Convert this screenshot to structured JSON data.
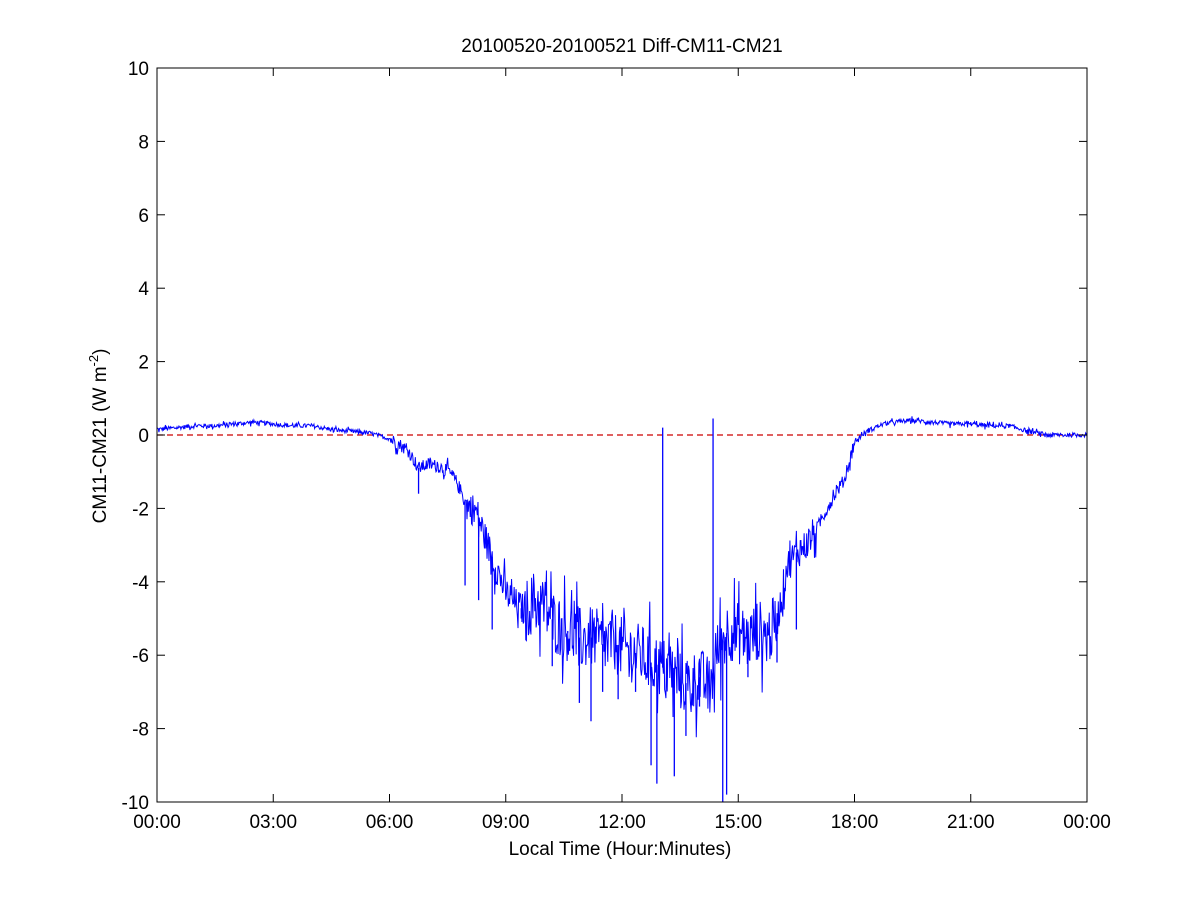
{
  "chart_data": {
    "type": "line",
    "title": "20100520-20100521 Diff-CM11-CM21",
    "xlabel": "Local Time (Hour:Minutes)",
    "ylabel": "CM11-CM21 (W m",
    "ylabel_sup": "-2",
    "ylabel_close": ")",
    "xlim": [
      0,
      24
    ],
    "ylim": [
      -10,
      10
    ],
    "grid": false,
    "x_ticks": [
      0,
      3,
      6,
      9,
      12,
      15,
      18,
      21,
      24
    ],
    "x_tick_labels": [
      "00:00",
      "03:00",
      "06:00",
      "09:00",
      "12:00",
      "15:00",
      "18:00",
      "21:00",
      "00:00"
    ],
    "y_ticks": [
      -10,
      -8,
      -6,
      -4,
      -2,
      0,
      2,
      4,
      6,
      8,
      10
    ],
    "y_tick_labels": [
      "-10",
      "-8",
      "-6",
      "-4",
      "-2",
      "0",
      "2",
      "4",
      "6",
      "8",
      "10"
    ],
    "reference_line": {
      "y": 0,
      "style": "dashed",
      "color": "#cc0000"
    },
    "series": [
      {
        "color": "#0000ff",
        "points": [
          [
            0.0,
            0.15
          ],
          [
            0.5,
            0.2
          ],
          [
            1.0,
            0.25
          ],
          [
            1.5,
            0.25
          ],
          [
            2.0,
            0.3
          ],
          [
            2.5,
            0.35
          ],
          [
            3.0,
            0.3
          ],
          [
            3.5,
            0.25
          ],
          [
            4.0,
            0.25
          ],
          [
            4.5,
            0.15
          ],
          [
            5.0,
            0.1
          ],
          [
            5.5,
            0.05
          ],
          [
            6.0,
            -0.1
          ],
          [
            6.25,
            -0.25
          ],
          [
            6.5,
            -0.45
          ],
          [
            6.75,
            -0.9
          ],
          [
            7.0,
            -0.8
          ],
          [
            7.25,
            -0.85
          ],
          [
            7.5,
            -0.95
          ],
          [
            7.75,
            -1.3
          ],
          [
            8.0,
            -1.9
          ],
          [
            8.25,
            -2.1
          ],
          [
            8.5,
            -2.9
          ],
          [
            8.75,
            -3.6
          ],
          [
            9.0,
            -4.3
          ],
          [
            9.25,
            -4.6
          ],
          [
            9.5,
            -4.8
          ],
          [
            9.75,
            -4.5
          ],
          [
            10.0,
            -4.7
          ],
          [
            10.25,
            -5.1
          ],
          [
            10.5,
            -5.3
          ],
          [
            10.75,
            -5.4
          ],
          [
            11.0,
            -5.6
          ],
          [
            11.25,
            -5.5
          ],
          [
            11.5,
            -5.7
          ],
          [
            11.75,
            -5.6
          ],
          [
            12.0,
            -5.8
          ],
          [
            12.25,
            -5.9
          ],
          [
            12.5,
            -6.0
          ],
          [
            12.75,
            -6.2
          ],
          [
            13.0,
            -6.3
          ],
          [
            13.25,
            -6.5
          ],
          [
            13.5,
            -6.7
          ],
          [
            13.75,
            -6.8
          ],
          [
            14.0,
            -6.6
          ],
          [
            14.25,
            -6.9
          ],
          [
            14.5,
            -5.8
          ],
          [
            14.75,
            -5.3
          ],
          [
            15.0,
            -5.4
          ],
          [
            15.25,
            -5.6
          ],
          [
            15.5,
            -5.3
          ],
          [
            15.75,
            -5.5
          ],
          [
            16.0,
            -5.1
          ],
          [
            16.25,
            -3.6
          ],
          [
            16.5,
            -3.2
          ],
          [
            16.75,
            -3.0
          ],
          [
            17.0,
            -2.6
          ],
          [
            17.25,
            -2.1
          ],
          [
            17.5,
            -1.6
          ],
          [
            17.75,
            -1.2
          ],
          [
            18.0,
            -0.2
          ],
          [
            18.25,
            0.05
          ],
          [
            18.5,
            0.2
          ],
          [
            18.75,
            0.3
          ],
          [
            19.0,
            0.35
          ],
          [
            19.5,
            0.4
          ],
          [
            20.0,
            0.35
          ],
          [
            20.5,
            0.3
          ],
          [
            21.0,
            0.3
          ],
          [
            21.5,
            0.25
          ],
          [
            22.0,
            0.25
          ],
          [
            22.5,
            0.1
          ],
          [
            23.0,
            0.0
          ],
          [
            23.5,
            0.0
          ],
          [
            24.0,
            0.0
          ]
        ],
        "spikes": [
          [
            6.75,
            -1.6
          ],
          [
            7.95,
            -4.1
          ],
          [
            8.3,
            -4.5
          ],
          [
            8.65,
            -5.3
          ],
          [
            9.4,
            -5.0
          ],
          [
            10.2,
            -6.3
          ],
          [
            10.6,
            -5.4
          ],
          [
            10.9,
            -7.3
          ],
          [
            11.2,
            -7.8
          ],
          [
            11.5,
            -7.0
          ],
          [
            11.9,
            -7.2
          ],
          [
            12.35,
            -7.0
          ],
          [
            12.75,
            -9.0
          ],
          [
            12.9,
            -9.5
          ],
          [
            13.05,
            0.2
          ],
          [
            13.35,
            -9.3
          ],
          [
            13.65,
            -8.2
          ],
          [
            14.0,
            -7.4
          ],
          [
            14.35,
            0.45
          ],
          [
            14.6,
            -10.0
          ],
          [
            14.7,
            -9.8
          ],
          [
            15.25,
            -6.6
          ],
          [
            16.0,
            -6.2
          ],
          [
            16.5,
            -5.3
          ]
        ]
      }
    ]
  }
}
